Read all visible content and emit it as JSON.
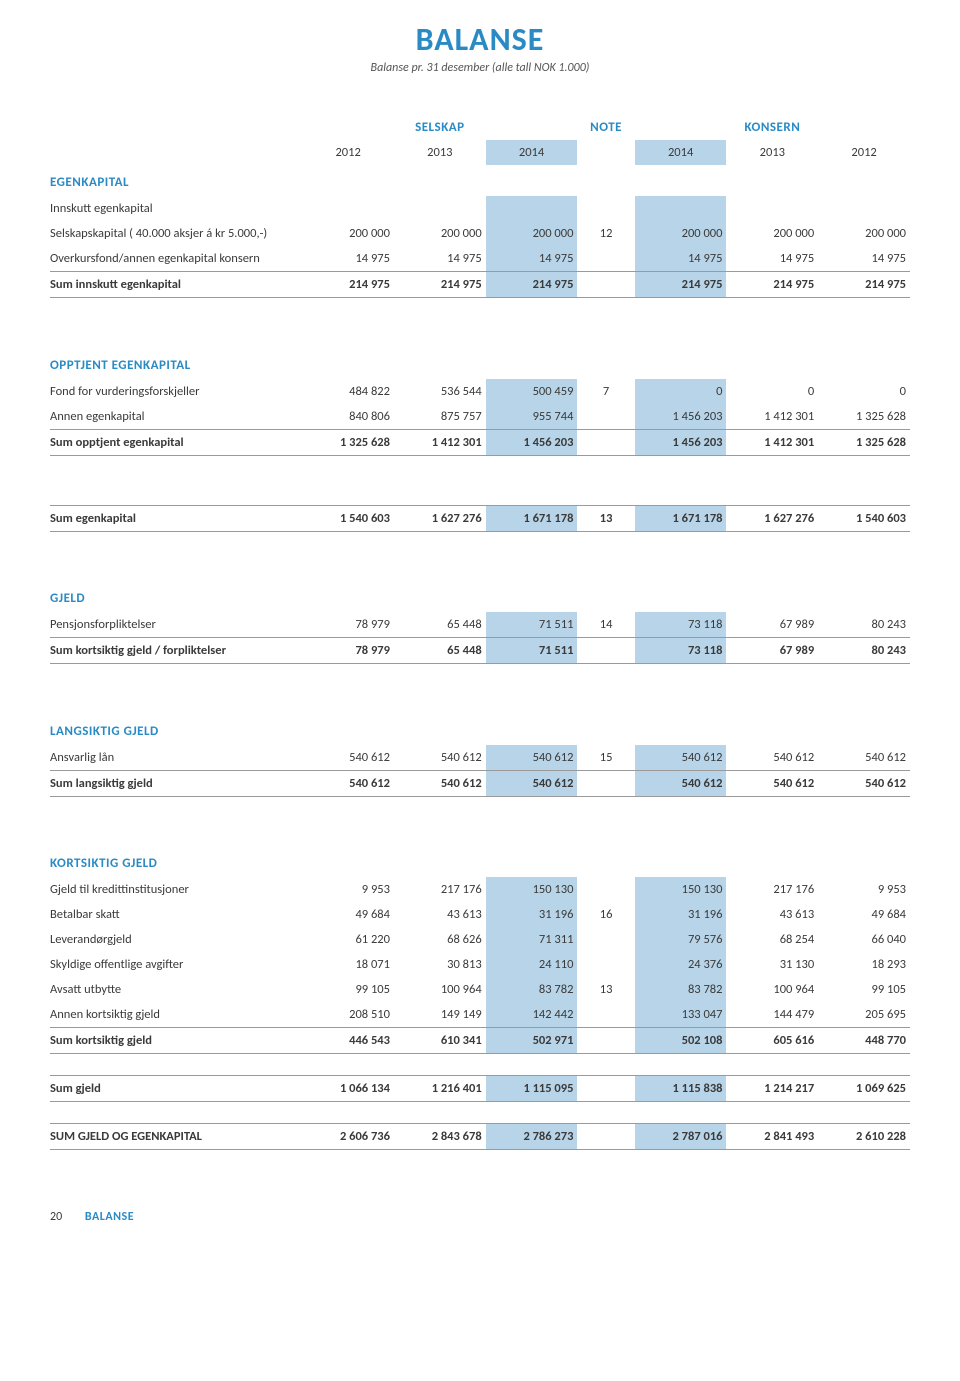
{
  "title": "BALANSE",
  "subtitle": "Balanse pr. 31 desember (alle tall NOK 1.000)",
  "header": {
    "selskap": "SELSKAP",
    "note": "NOTE",
    "konsern": "KONSERN",
    "years_selskap": [
      "2012",
      "2013",
      "2014"
    ],
    "years_konsern": [
      "2014",
      "2013",
      "2012"
    ]
  },
  "sections": [
    {
      "heading": "EGENKAPITAL",
      "gap": "none",
      "rows": [
        {
          "label": "Innskutt egenkapital"
        },
        {
          "label": "Selskapskapital ( 40.000 aksjer á kr 5.000,-)",
          "s": [
            "200 000",
            "200 000",
            "200 000"
          ],
          "note": "12",
          "k": [
            "200 000",
            "200 000",
            "200 000"
          ]
        },
        {
          "label": "Overkursfond/annen egenkapital konsern",
          "s": [
            "14 975",
            "14 975",
            "14 975"
          ],
          "k": [
            "14 975",
            "14 975",
            "14 975"
          ]
        },
        {
          "label": "Sum innskutt egenkapital",
          "sum": true,
          "s": [
            "214 975",
            "214 975",
            "214 975"
          ],
          "k": [
            "214 975",
            "214 975",
            "214 975"
          ]
        }
      ]
    },
    {
      "heading": "OPPTJENT EGENKAPITAL",
      "gap": "block",
      "rows": [
        {
          "label": "Fond for vurderingsforskjeller",
          "s": [
            "484 822",
            "536 544",
            "500 459"
          ],
          "note": "7",
          "k": [
            "0",
            "0",
            "0"
          ]
        },
        {
          "label": "Annen egenkapital",
          "s": [
            "840 806",
            "875 757",
            "955 744"
          ],
          "k": [
            "1 456 203",
            "1 412 301",
            "1 325 628"
          ]
        },
        {
          "label": "Sum opptjent egenkapital",
          "sum": true,
          "s": [
            "1 325 628",
            "1 412 301",
            "1 456 203"
          ],
          "k": [
            "1 456 203",
            "1 412 301",
            "1 325 628"
          ]
        }
      ]
    },
    {
      "gap": "block",
      "rows": [
        {
          "label": "Sum egenkapital",
          "sum": true,
          "s": [
            "1 540 603",
            "1 627 276",
            "1 671 178"
          ],
          "note": "13",
          "k": [
            "1 671 178",
            "1 627 276",
            "1 540 603"
          ]
        }
      ]
    },
    {
      "heading": "GJELD",
      "gap": "block",
      "rows": [
        {
          "label": "Pensjonsforpliktelser",
          "s": [
            "78 979",
            "65 448",
            "71 511"
          ],
          "note": "14",
          "k": [
            "73 118",
            "67 989",
            "80 243"
          ]
        },
        {
          "label": "Sum kortsiktig gjeld / forpliktelser",
          "sum": true,
          "s": [
            "78 979",
            "65 448",
            "71 511"
          ],
          "k": [
            "73 118",
            "67 989",
            "80 243"
          ]
        }
      ]
    },
    {
      "heading": "LANGSIKTIG GJELD",
      "gap": "block",
      "rows": [
        {
          "label": "Ansvarlig lån",
          "s": [
            "540 612",
            "540 612",
            "540 612"
          ],
          "note": "15",
          "k": [
            "540 612",
            "540 612",
            "540 612"
          ]
        },
        {
          "label": "Sum langsiktig gjeld",
          "sum": true,
          "s": [
            "540 612",
            "540 612",
            "540 612"
          ],
          "k": [
            "540 612",
            "540 612",
            "540 612"
          ]
        }
      ]
    },
    {
      "heading": "KORTSIKTIG GJELD",
      "gap": "block",
      "rows": [
        {
          "label": "Gjeld til kredittinstitusjoner",
          "s": [
            "9 953",
            "217 176",
            "150 130"
          ],
          "k": [
            "150 130",
            "217 176",
            "9 953"
          ]
        },
        {
          "label": "Betalbar skatt",
          "s": [
            "49 684",
            "43 613",
            "31 196"
          ],
          "note": "16",
          "k": [
            "31 196",
            "43 613",
            "49 684"
          ]
        },
        {
          "label": "Leverandørgjeld",
          "s": [
            "61 220",
            "68 626",
            "71 311"
          ],
          "k": [
            "79 576",
            "68 254",
            "66 040"
          ]
        },
        {
          "label": "Skyldige offentlige avgifter",
          "s": [
            "18 071",
            "30 813",
            "24 110"
          ],
          "k": [
            "24 376",
            "31 130",
            "18 293"
          ]
        },
        {
          "label": "Avsatt utbytte",
          "s": [
            "99 105",
            "100 964",
            "83 782"
          ],
          "note": "13",
          "k": [
            "83 782",
            "100 964",
            "99 105"
          ]
        },
        {
          "label": "Annen kortsiktig gjeld",
          "s": [
            "208 510",
            "149 149",
            "142 442"
          ],
          "k": [
            "133 047",
            "144 479",
            "205 695"
          ]
        },
        {
          "label": "Sum kortsiktig gjeld",
          "sum": true,
          "s": [
            "446 543",
            "610 341",
            "502 971"
          ],
          "k": [
            "502 108",
            "605 616",
            "448 770"
          ]
        }
      ]
    },
    {
      "gap": "small",
      "rows": [
        {
          "label": "Sum gjeld",
          "sum": true,
          "s": [
            "1 066 134",
            "1 216 401",
            "1 115 095"
          ],
          "k": [
            "1 115 838",
            "1 214 217",
            "1 069 625"
          ]
        }
      ]
    },
    {
      "gap": "small",
      "rows": [
        {
          "label": "SUM GJELD OG EGENKAPITAL",
          "sum": true,
          "s": [
            "2 606 736",
            "2 843 678",
            "2 786 273"
          ],
          "k": [
            "2 787 016",
            "2 841 493",
            "2 610 228"
          ]
        }
      ]
    }
  ],
  "footer": {
    "page": "20",
    "label": "BALANSE"
  },
  "colors": {
    "accent": "#2a8bc4",
    "highlight": "#b8d4e8",
    "text": "#3a3a3a",
    "rule": "#9a9a9a",
    "background": "#ffffff"
  }
}
